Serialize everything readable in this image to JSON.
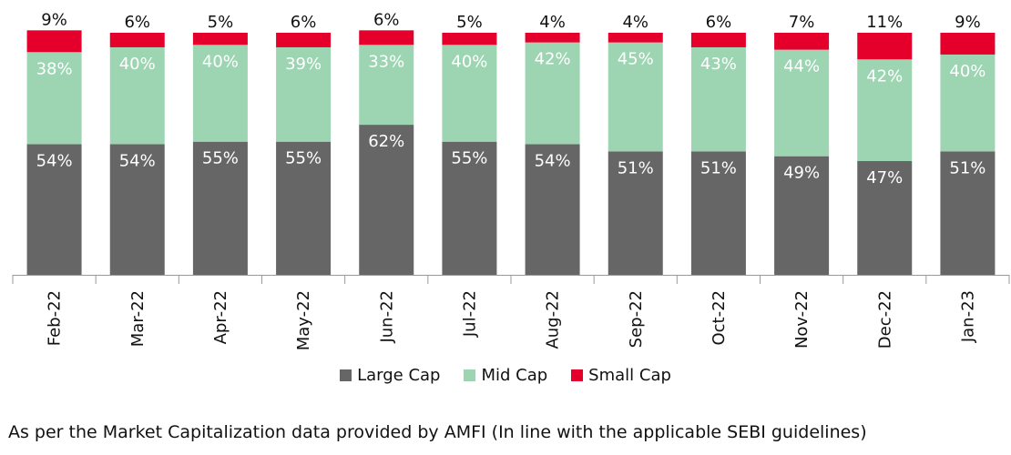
{
  "chart_data": {
    "type": "bar",
    "stacked": true,
    "categories": [
      "Feb-22",
      "Mar-22",
      "Apr-22",
      "May-22",
      "Jun-22",
      "Jul-22",
      "Aug-22",
      "Sep-22",
      "Oct-22",
      "Nov-22",
      "Dec-22",
      "Jan-23"
    ],
    "series": [
      {
        "name": "Large Cap",
        "color": "#666666",
        "values": [
          54,
          54,
          55,
          55,
          62,
          55,
          54,
          51,
          51,
          49,
          47,
          51
        ]
      },
      {
        "name": "Mid Cap",
        "color": "#9dd5b3",
        "values": [
          38,
          40,
          40,
          39,
          33,
          40,
          42,
          45,
          43,
          44,
          42,
          40
        ]
      },
      {
        "name": "Small Cap",
        "color": "#e4002b",
        "values": [
          9,
          6,
          5,
          6,
          6,
          5,
          4,
          4,
          6,
          7,
          11,
          9
        ]
      }
    ],
    "value_suffix": "%",
    "legend_position": "bottom-center",
    "grid": false
  },
  "footnote": "As per the Market Capitalization data provided by AMFI (In line with the applicable SEBI guidelines)"
}
